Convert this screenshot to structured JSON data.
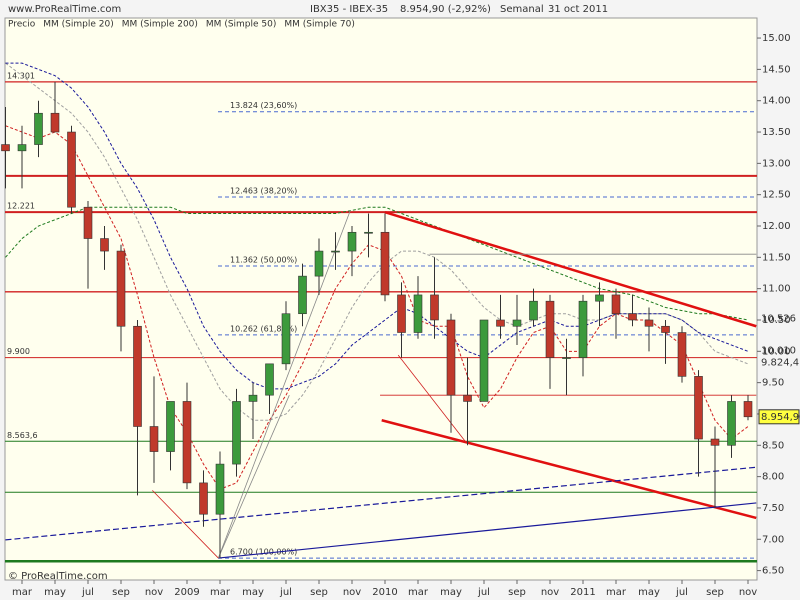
{
  "chart_data": {
    "type": "candlestick",
    "site": "www.ProRealTime.com",
    "instrument": "IBX35 - IBEX-35",
    "last_price": "8.954,90 (-2,92%)",
    "period": "Semanal",
    "date": "31 oct 2011",
    "footer": "© ProRealTime.com",
    "categories": [
      null,
      "mar",
      null,
      "may",
      null,
      "jul",
      null,
      "sep",
      null,
      "nov",
      null,
      "2009",
      null,
      "mar",
      null,
      "may",
      null,
      "jul",
      null,
      "sep",
      null,
      "nov",
      null,
      "2010",
      null,
      "mar",
      null,
      "may",
      null,
      "jul",
      null,
      "sep",
      null,
      "nov",
      null,
      "2011",
      null,
      "mar",
      null,
      "may",
      null,
      "jul",
      null,
      "sep",
      null,
      "nov"
    ],
    "ylim": [
      6.35,
      15.32
    ],
    "yticks": [
      {
        "value": 6.5,
        "label": "6.50"
      },
      {
        "value": 7,
        "label": "7.00"
      },
      {
        "value": 7.5,
        "label": "7.50"
      },
      {
        "value": 8,
        "label": "8.00"
      },
      {
        "value": 8.5,
        "label": "8.50"
      },
      {
        "value": 9,
        "label": "9.00"
      },
      {
        "value": 9.5,
        "label": "9.50"
      },
      {
        "value": 10,
        "label": "10.00"
      },
      {
        "value": 10.5,
        "label": "10.50"
      },
      {
        "value": 11,
        "label": "11.00"
      },
      {
        "value": 11.5,
        "label": "11.50"
      },
      {
        "value": 12,
        "label": "12.00"
      },
      {
        "value": 12.5,
        "label": "12.50"
      },
      {
        "value": 13,
        "label": "13.00"
      },
      {
        "value": 13.5,
        "label": "13.50"
      },
      {
        "value": 14,
        "label": "14.00"
      },
      {
        "value": 14.5,
        "label": "14.50"
      },
      {
        "value": 15,
        "label": "15.00"
      }
    ],
    "up_color": "#3c9a3c",
    "down_color": "#c0392b",
    "series": [
      {
        "name": "Precio",
        "color": "#555555",
        "open": [
          13.3,
          13.2,
          13.3,
          13.8,
          13.5,
          12.3,
          11.8,
          11.6,
          10.4,
          8.8,
          8.4,
          9.2,
          7.9,
          7.4,
          8.2,
          9.2,
          9.3,
          9.8,
          10.6,
          11.2,
          11.6,
          11.6,
          11.9,
          11.9,
          10.9,
          10.3,
          10.9,
          10.5,
          9.3,
          9.2,
          10.5,
          10.4,
          10.5,
          10.8,
          9.9,
          9.9,
          10.8,
          10.9,
          10.6,
          10.5,
          10.4,
          10.3,
          9.6,
          8.6,
          8.5,
          9.2
        ],
        "high": [
          13.9,
          13.6,
          14.0,
          14.3,
          13.6,
          12.4,
          12.0,
          11.7,
          10.5,
          9.6,
          9.2,
          9.5,
          8.1,
          8.4,
          9.4,
          9.5,
          9.8,
          10.8,
          11.4,
          11.8,
          11.9,
          12.0,
          12.2,
          12.2,
          11.1,
          11.2,
          11.5,
          10.6,
          9.9,
          10.5,
          10.9,
          10.9,
          11.0,
          10.9,
          10.2,
          10.9,
          11.1,
          11.0,
          10.9,
          10.7,
          10.5,
          10.4,
          9.7,
          8.8,
          9.3,
          9.3
        ],
        "low": [
          12.6,
          12.6,
          13.1,
          13.5,
          12.2,
          11.0,
          11.3,
          10.0,
          7.7,
          7.9,
          8.1,
          7.8,
          7.2,
          6.7,
          8.0,
          8.6,
          9.0,
          9.7,
          10.4,
          10.9,
          11.3,
          11.2,
          11.5,
          10.8,
          9.9,
          10.2,
          10.2,
          8.7,
          8.5,
          9.2,
          10.2,
          10.1,
          10.4,
          9.4,
          9.3,
          9.6,
          10.4,
          10.2,
          10.4,
          10.0,
          9.8,
          9.5,
          8.0,
          7.5,
          8.3,
          8.9
        ],
        "close": [
          13.2,
          13.3,
          13.8,
          13.5,
          12.3,
          11.8,
          11.6,
          10.4,
          8.8,
          8.4,
          9.2,
          7.9,
          7.4,
          8.2,
          9.2,
          9.3,
          9.8,
          10.6,
          11.2,
          11.6,
          11.6,
          11.9,
          11.9,
          10.9,
          10.3,
          10.9,
          10.5,
          9.3,
          9.2,
          10.5,
          10.4,
          10.5,
          10.8,
          9.9,
          9.9,
          10.8,
          10.9,
          10.6,
          10.5,
          10.4,
          10.3,
          9.6,
          8.6,
          8.5,
          9.2,
          8.9549
        ]
      },
      {
        "name": "MM (Simple 20)",
        "color": "#d02020",
        "values": [
          13.6,
          13.5,
          13.4,
          13.5,
          13.3,
          12.8,
          12.3,
          11.8,
          10.9,
          9.9,
          9.1,
          8.7,
          8.2,
          7.8,
          7.9,
          8.4,
          8.9,
          9.3,
          9.8,
          10.4,
          11.0,
          11.4,
          11.7,
          11.6,
          11.2,
          10.5,
          10.4,
          10.4,
          9.6,
          9.1,
          9.4,
          9.9,
          10.3,
          10.4,
          10.0,
          10.0,
          10.4,
          10.6,
          10.5,
          10.5,
          10.3,
          10.1,
          9.5,
          8.9,
          8.6,
          8.8
        ]
      },
      {
        "name": "MM (Simple 200)",
        "color": "#1e7a1e",
        "values": [
          11.5,
          11.8,
          12.0,
          12.1,
          12.2,
          12.3,
          12.3,
          12.3,
          12.3,
          12.3,
          12.3,
          12.2,
          12.2,
          12.2,
          12.2,
          12.2,
          12.2,
          12.2,
          12.2,
          12.2,
          12.2,
          12.25,
          12.3,
          12.3,
          12.2,
          12.1,
          12.0,
          11.9,
          11.8,
          11.7,
          11.6,
          11.5,
          11.4,
          11.3,
          11.2,
          11.1,
          11.0,
          10.95,
          10.9,
          10.8,
          10.7,
          10.65,
          10.6,
          10.6,
          10.55,
          10.5
        ]
      },
      {
        "name": "MM (Simple 50)",
        "color": "#a0a0a0",
        "values": [
          14.6,
          14.4,
          14.2,
          14.0,
          13.8,
          13.5,
          13.1,
          12.6,
          12.1,
          11.5,
          10.9,
          10.4,
          9.9,
          9.4,
          9.1,
          8.9,
          8.9,
          9.0,
          9.3,
          9.7,
          10.2,
          10.7,
          11.1,
          11.4,
          11.6,
          11.6,
          11.5,
          11.3,
          11.0,
          10.7,
          10.5,
          10.4,
          10.5,
          10.6,
          10.6,
          10.5,
          10.5,
          10.6,
          10.6,
          10.6,
          10.6,
          10.5,
          10.3,
          10.0,
          9.9,
          9.8
        ]
      },
      {
        "name": "MM (Simple 70)",
        "color": "#1a1a9a",
        "values": [
          14.6,
          14.6,
          14.5,
          14.4,
          14.2,
          13.9,
          13.5,
          13.0,
          12.6,
          12.1,
          11.5,
          11.0,
          10.4,
          10.0,
          9.7,
          9.5,
          9.4,
          9.4,
          9.5,
          9.6,
          9.8,
          10.1,
          10.3,
          10.5,
          10.7,
          10.6,
          10.4,
          10.2,
          10.0,
          9.9,
          10.1,
          10.3,
          10.4,
          10.5,
          10.4,
          10.4,
          10.5,
          10.6,
          10.6,
          10.6,
          10.6,
          10.5,
          10.3,
          10.2,
          10.1,
          10.0
        ]
      }
    ],
    "levels": [
      {
        "value": 14.301,
        "label": "14.301",
        "color": "#d02020",
        "width": 1.3
      },
      {
        "value": 12.8,
        "color": "#d02020",
        "width": 2
      },
      {
        "value": 12.221,
        "label": "12.221",
        "color": "#d02020",
        "width": 2
      },
      {
        "value": 10.95,
        "color": "#d02020",
        "width": 1.3
      },
      {
        "value": 9.9,
        "label": "9.900",
        "color": "#d02020",
        "width": 1
      },
      {
        "value": 8.5636,
        "label": "8.563,6",
        "color": "#1e7a1e",
        "width": 1
      },
      {
        "value": 7.75,
        "color": "#1e7a1e",
        "width": 1
      },
      {
        "value": 6.65,
        "color": "#1e7a1e",
        "width": 2.5
      }
    ],
    "fibonacci": [
      {
        "value": 13.824,
        "label": "13.824 (23,60%)"
      },
      {
        "value": 12.463,
        "label": "12.463 (38,20%)"
      },
      {
        "value": 11.362,
        "label": "11.362 (50,00%)"
      },
      {
        "value": 10.262,
        "label": "10.262 (61,80%)"
      },
      {
        "value": 6.7,
        "label": "6.700 (100,00%)"
      }
    ],
    "trendlines": [
      {
        "from": [
          23,
          12.221
        ],
        "to": [
          45.5,
          10.4
        ],
        "color": "#e01010",
        "width": 2.5
      },
      {
        "from": [
          22.8,
          8.9
        ],
        "to": [
          45.5,
          7.34
        ],
        "color": "#e01010",
        "width": 2.5
      },
      {
        "from": [
          0,
          6.99
        ],
        "to": [
          45.5,
          8.15
        ],
        "color": "#1a1a9a",
        "width": 1.2,
        "dash": true
      },
      {
        "from": [
          12.9,
          6.7
        ],
        "to": [
          45.5,
          7.58
        ],
        "color": "#1a1a9a",
        "width": 1.2
      },
      {
        "from": [
          12.9,
          6.7
        ],
        "to": [
          20.9,
          12.25
        ],
        "color": "#888888",
        "width": 0.8
      },
      {
        "from": [
          12.9,
          6.7
        ],
        "to": [
          17.2,
          9.3
        ],
        "color": "#888888",
        "width": 0.8
      },
      {
        "from": [
          8.9,
          7.78
        ],
        "to": [
          12.9,
          6.7
        ],
        "color": "#d02020",
        "width": 0.8
      },
      {
        "from": [
          23.8,
          9.94
        ],
        "to": [
          27.9,
          8.55
        ],
        "color": "#d02020",
        "width": 0.8
      },
      {
        "from": [
          22.7,
          9.3
        ],
        "to": [
          45.5,
          9.3
        ],
        "color": "#d02020",
        "width": 0.8
      },
      {
        "from": [
          25.7,
          11.55
        ],
        "to": [
          45.5,
          11.55
        ],
        "color": "#888888",
        "width": 0.8
      }
    ],
    "last_labels": [
      {
        "value": 10.526,
        "label": "10.526",
        "color": "#1e7a1e"
      },
      {
        "value": 10.01,
        "label": "10.010",
        "color": "#1a1a9a"
      },
      {
        "value": 9.8244,
        "label": "9.824,4",
        "color": "#888888"
      },
      {
        "value": 8.9549,
        "label": "8.954,90",
        "color": "#000000",
        "boxed": true
      }
    ]
  }
}
